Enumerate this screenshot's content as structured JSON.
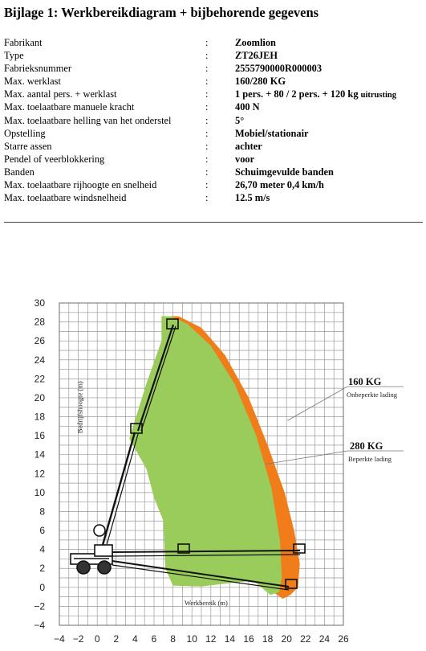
{
  "title": "Bijlage 1: Werkbereikdiagram + bijbehorende gegevens",
  "specs": [
    {
      "label": "Fabrikant",
      "value": "Zoomlion"
    },
    {
      "label": "Type",
      "value": "ZT26JEH"
    },
    {
      "label": "Fabrieksnummer",
      "value": "2555790000R000003"
    },
    {
      "label": "Max. werklast",
      "value": "160/280 KG"
    },
    {
      "label": "Max. aantal pers. + werklast",
      "value": "1 pers. + 80 / 2 pers. + 120 kg",
      "extra": "uitrusting"
    },
    {
      "label": "Max. toelaatbare manuele kracht",
      "value": "400 N"
    },
    {
      "label": "Max. toelaatbare helling van het onderstel",
      "value": "5°"
    },
    {
      "label": "Opstelling",
      "value": "Mobiel/stationair"
    },
    {
      "label": "Starre assen",
      "value": "achter"
    },
    {
      "label": "Pendel of veerblokkering",
      "value": "voor"
    },
    {
      "label": "Banden",
      "value": "Schuimgevulde banden"
    },
    {
      "label": "Max. toelaatbare rijhoogte en snelheid",
      "value": "26,70 meter 0,4 km/h"
    },
    {
      "label": "Max. toelaatbare windsnelheid",
      "value": "12.5 m/s"
    }
  ],
  "colon": ":",
  "chart_data": {
    "type": "area",
    "xlabel": "Werkbereik (m)",
    "ylabel": "Bedrijfshoogte (m)",
    "xlim": [
      -4,
      26
    ],
    "ylim": [
      -4,
      30
    ],
    "x_ticks": [
      -4,
      -2,
      0,
      2,
      4,
      6,
      8,
      10,
      12,
      14,
      16,
      18,
      20,
      22,
      24,
      26
    ],
    "y_ticks": [
      -4,
      -2,
      0,
      2,
      4,
      6,
      8,
      10,
      12,
      14,
      16,
      18,
      20,
      22,
      24,
      26,
      28,
      30
    ],
    "grid": true,
    "series": [
      {
        "name": "160 KG",
        "subtitle": "Onbeperkte lading",
        "color": "#f07d1a",
        "polygon": [
          [
            8.6,
            28.6
          ],
          [
            11,
            27.4
          ],
          [
            13.5,
            24.5
          ],
          [
            16,
            20
          ],
          [
            18,
            15
          ],
          [
            19.8,
            10
          ],
          [
            20.8,
            6
          ],
          [
            21.4,
            2.5
          ],
          [
            21.2,
            0
          ],
          [
            20.4,
            -0.8
          ],
          [
            19.6,
            -1.2
          ],
          [
            16.5,
            1
          ],
          [
            15,
            0.6
          ],
          [
            11,
            0.1
          ],
          [
            8,
            0.2
          ],
          [
            7.2,
            2
          ],
          [
            7,
            7
          ],
          [
            6,
            9.5
          ],
          [
            5.2,
            12.5
          ],
          [
            3.4,
            15.7
          ],
          [
            5.2,
            21.5
          ],
          [
            6.8,
            26
          ],
          [
            6.8,
            28.6
          ]
        ]
      },
      {
        "name": "280 KG",
        "subtitle": "Beperkte lading",
        "color": "#99cc5a",
        "polygon": [
          [
            7.8,
            28.6
          ],
          [
            9.5,
            27.8
          ],
          [
            12,
            25.5
          ],
          [
            14.5,
            21.5
          ],
          [
            16.8,
            16
          ],
          [
            18.4,
            10.5
          ],
          [
            19.3,
            5
          ],
          [
            19.5,
            1
          ],
          [
            19.2,
            -0.5
          ],
          [
            18.3,
            -0.8
          ],
          [
            16.5,
            0.7
          ],
          [
            14.5,
            0.5
          ],
          [
            11,
            0.1
          ],
          [
            8,
            0.2
          ],
          [
            7.2,
            2
          ],
          [
            7,
            7
          ],
          [
            6,
            9.5
          ],
          [
            5.2,
            12.5
          ],
          [
            3.4,
            15.7
          ],
          [
            5.2,
            21.5
          ],
          [
            6.8,
            26
          ],
          [
            6.8,
            28.6
          ]
        ]
      }
    ]
  }
}
